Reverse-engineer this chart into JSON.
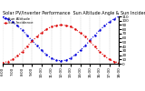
{
  "title": "Solar PV/Inverter Performance  Sun Altitude Angle & Sun Incidence Angle on PV Panels",
  "x_values": [
    0,
    1,
    2,
    3,
    4,
    5,
    6,
    7,
    8,
    9,
    10,
    11,
    12,
    13,
    14,
    15,
    16,
    17,
    18,
    19,
    20,
    21,
    22,
    23,
    24
  ],
  "blue_values": [
    110,
    104,
    97,
    88,
    78,
    66,
    54,
    42,
    31,
    21,
    13,
    8,
    7,
    8,
    13,
    21,
    31,
    42,
    54,
    66,
    78,
    88,
    97,
    104,
    110
  ],
  "red_values": [
    2,
    5,
    10,
    18,
    28,
    40,
    52,
    63,
    72,
    80,
    86,
    89,
    90,
    89,
    86,
    80,
    72,
    63,
    52,
    40,
    28,
    18,
    10,
    5,
    2
  ],
  "blue_color": "#0000dd",
  "red_color": "#dd0000",
  "background_color": "#ffffff",
  "grid_color": "#999999",
  "ylim": [
    0,
    110
  ],
  "xlim": [
    0,
    24
  ],
  "right_yticks": [
    0,
    10,
    20,
    30,
    40,
    50,
    60,
    70,
    80,
    90,
    100,
    110
  ],
  "xtick_labels": [
    "6:00",
    "7:00",
    "8:00",
    "9:00",
    "10:00",
    "11:00",
    "12:00",
    "13:00",
    "14:00",
    "15:00",
    "16:00",
    "17:00",
    "18:00"
  ],
  "xtick_positions": [
    0,
    2,
    4,
    6,
    8,
    10,
    12,
    14,
    16,
    18,
    20,
    22,
    24
  ],
  "title_fontsize": 3.5,
  "tick_fontsize": 3.0,
  "legend_labels": [
    "Sun Altitude",
    "Sun Incidence"
  ],
  "legend_fontsize": 2.8,
  "line_width": 0.8,
  "marker_size": 1.5
}
